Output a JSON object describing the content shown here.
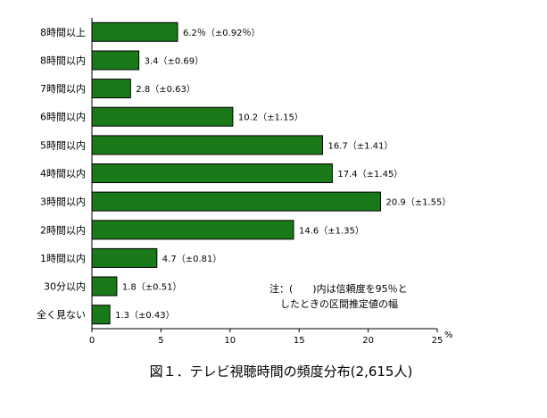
{
  "chart_data": {
    "type": "bar",
    "orientation": "horizontal",
    "title": "図１．テレビ視聴時間の頻度分布(2,615人)",
    "xlabel": "",
    "ylabel": "",
    "x_unit": "%",
    "xlim": [
      0,
      25
    ],
    "xticks": [
      0,
      5,
      10,
      15,
      20,
      25
    ],
    "grid": false,
    "bar_color": "#1a7a1a",
    "categories": [
      "8時間以上",
      "8時間以内",
      "7時間以内",
      "6時間以内",
      "5時間以内",
      "4時間以内",
      "3時間以内",
      "2時間以内",
      "1時間以内",
      "30分以内",
      "全く見ない"
    ],
    "values": [
      6.2,
      3.4,
      2.8,
      10.2,
      16.7,
      17.4,
      20.9,
      14.6,
      4.7,
      1.8,
      1.3
    ],
    "labels": [
      "6.2％（±0.92％）",
      "3.4（±0.69）",
      "2.8（±0.63）",
      "10.2（±1.15）",
      "16.7（±1.41）",
      "17.4（±1.45）",
      "20.9（±1.55）",
      "14.6（±1.35）",
      "4.7（±0.81）",
      "1.8（±0.51）",
      "1.3（±0.43）"
    ],
    "note": [
      "注：(　　)内は信頼度を95％と",
      "したときの区間推定値の幅"
    ]
  }
}
